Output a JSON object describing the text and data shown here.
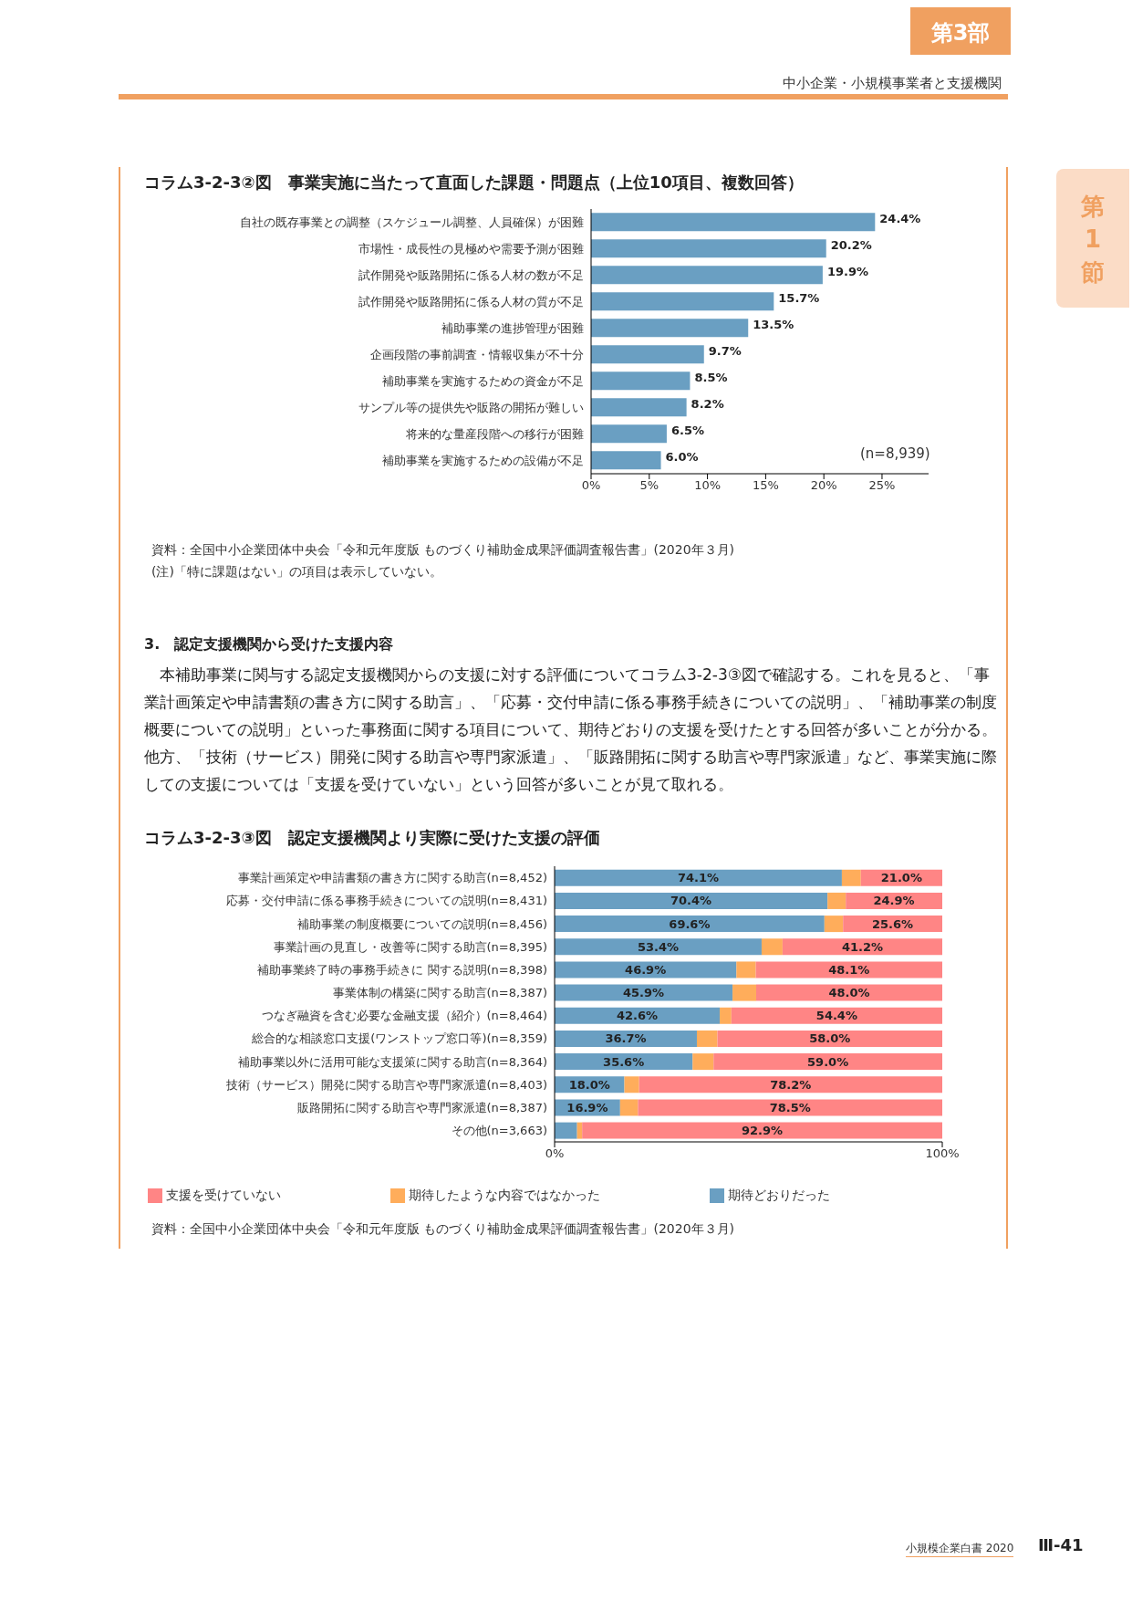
{
  "chart_data": [
    {
      "type": "bar",
      "orientation": "horizontal",
      "title": "コラム3-2-3②図　事業実施に当たって直面した課題・問題点（上位10項目、複数回答）",
      "categories": [
        "自社の既存事業との調整（スケジュール調整、人員確保）が困難",
        "市場性・成長性の見極めや需要予測が困難",
        "試作開発や販路開拓に係る人材の数が不足",
        "試作開発や販路開拓に係る人材の質が不足",
        "補助事業の進捗管理が困難",
        "企画段階の事前調査・情報収集が不十分",
        "補助事業を実施するための資金が不足",
        "サンプル等の提供先や販路の開拓が難しい",
        "将来的な量産段階への移行が困難",
        "補助事業を実施するための設備が不足"
      ],
      "values": [
        24.4,
        20.2,
        19.9,
        15.7,
        13.5,
        9.7,
        8.5,
        8.2,
        6.5,
        6.0
      ],
      "value_labels": [
        "24.4%",
        "20.2%",
        "19.9%",
        "15.7%",
        "13.5%",
        "9.7%",
        "8.5%",
        "8.2%",
        "6.5%",
        "6.0%"
      ],
      "color": "#6a9fc2",
      "xlim": [
        0,
        29
      ],
      "xticks": [
        {
          "value": 0,
          "label": "0%"
        },
        {
          "value": 5,
          "label": "5%"
        },
        {
          "value": 10,
          "label": "10%"
        },
        {
          "value": 15,
          "label": "15%"
        },
        {
          "value": 20,
          "label": "20%"
        },
        {
          "value": 25,
          "label": "25%"
        }
      ],
      "annotations": [
        "第3部",
        "中小企業・小規模事業者と支援機関",
        "第1節",
        "(n=8,939)",
        "資料：全国中小企業団体中央会「令和元年度版 ものづくり補助金成果評価調査報告書」(2020年３月)",
        "(注)「特に課題はない」の項目は表示していない。"
      ]
    },
    {
      "type": "bar",
      "orientation": "horizontal",
      "stacked": true,
      "title": "コラム3-2-3③図　認定支援機関より実際に受けた支援の評価",
      "categories": [
        "事業計画策定や申請書類の書き方に関する助言(n=8,452)",
        "応募・交付申請に係る事務手続きについての説明(n=8,431)",
        "補助事業の制度概要についての説明(n=8,456)",
        "事業計画の見直し・改善等に関する助言(n=8,395)",
        "補助事業終了時の事務手続きに 関する説明(n=8,398)",
        "事業体制の構築に関する助言(n=8,387)",
        "つなぎ融資を含む必要な金融支援（紹介）(n=8,464)",
        "総合的な相談窓口支援(ワンストップ窓口等)(n=8,359)",
        "補助事業以外に活用可能な支援策に関する助言(n=8,364)",
        "技術（サービス）開発に関する助言や専門家派遣(n=8,403)",
        "販路開拓に関する助言や専門家派遣(n=8,387)",
        "その他(n=3,663)"
      ],
      "series": [
        {
          "name": "期待どおりだった",
          "color": "#6a9fc2",
          "values": [
            74.1,
            70.4,
            69.6,
            53.4,
            46.9,
            45.9,
            42.6,
            36.7,
            35.6,
            18.0,
            16.9,
            5.8
          ],
          "value_labels": [
            "74.1%",
            "70.4%",
            "69.6%",
            "53.4%",
            "46.9%",
            "45.9%",
            "42.6%",
            "36.7%",
            "35.6%",
            "18.0%",
            "16.9%",
            null
          ]
        },
        {
          "name": "期待したような内容ではなかった",
          "color": "#ffad5b",
          "values": [
            4.9,
            4.7,
            4.8,
            5.4,
            5.0,
            6.1,
            3.0,
            5.3,
            5.4,
            3.8,
            4.6,
            1.3
          ]
        },
        {
          "name": "支援を受けていない",
          "color": "#ff8585",
          "values": [
            21.0,
            24.9,
            25.6,
            41.2,
            48.1,
            48.0,
            54.4,
            58.0,
            59.0,
            78.2,
            78.5,
            92.9
          ],
          "value_labels": [
            "21.0%",
            "24.9%",
            "25.6%",
            "41.2%",
            "48.1%",
            "48.0%",
            "54.4%",
            "58.0%",
            "59.0%",
            "78.2%",
            "78.5%",
            "92.9%"
          ]
        }
      ],
      "xlim": [
        0,
        100
      ],
      "xticks": [
        {
          "value": 0,
          "label": "0%"
        },
        {
          "value": 100,
          "label": "100%"
        }
      ],
      "legend": "bottom",
      "annotations": [
        "3.　認定支援機関から受けた支援内容",
        "　本補助事業に関与する認定支援機関からの支援に対する評価についてコラム3-2-3③図で確認する。これを見ると、「事業計画策定や申請書類の書き方に関する助言」、「応募・交付申請に係る事務手続きについての説明」、「補助事業の制度概要についての説明」といった事務面に関する項目について、期待どおりの支援を受けたとする回答が多いことが分かる。他方、「技術（サービス）開発に関する助言や専門家派遣」、「販路開拓に関する助言や専門家派遣」など、事業実施に際しての支援については「支援を受けていない」という回答が多いことが見て取れる。",
        "資料：全国中小企業団体中央会「令和元年度版 ものづくり補助金成果評価調査報告書」(2020年３月)",
        "小規模企業白書 2020",
        "Ⅲ-41"
      ]
    }
  ]
}
